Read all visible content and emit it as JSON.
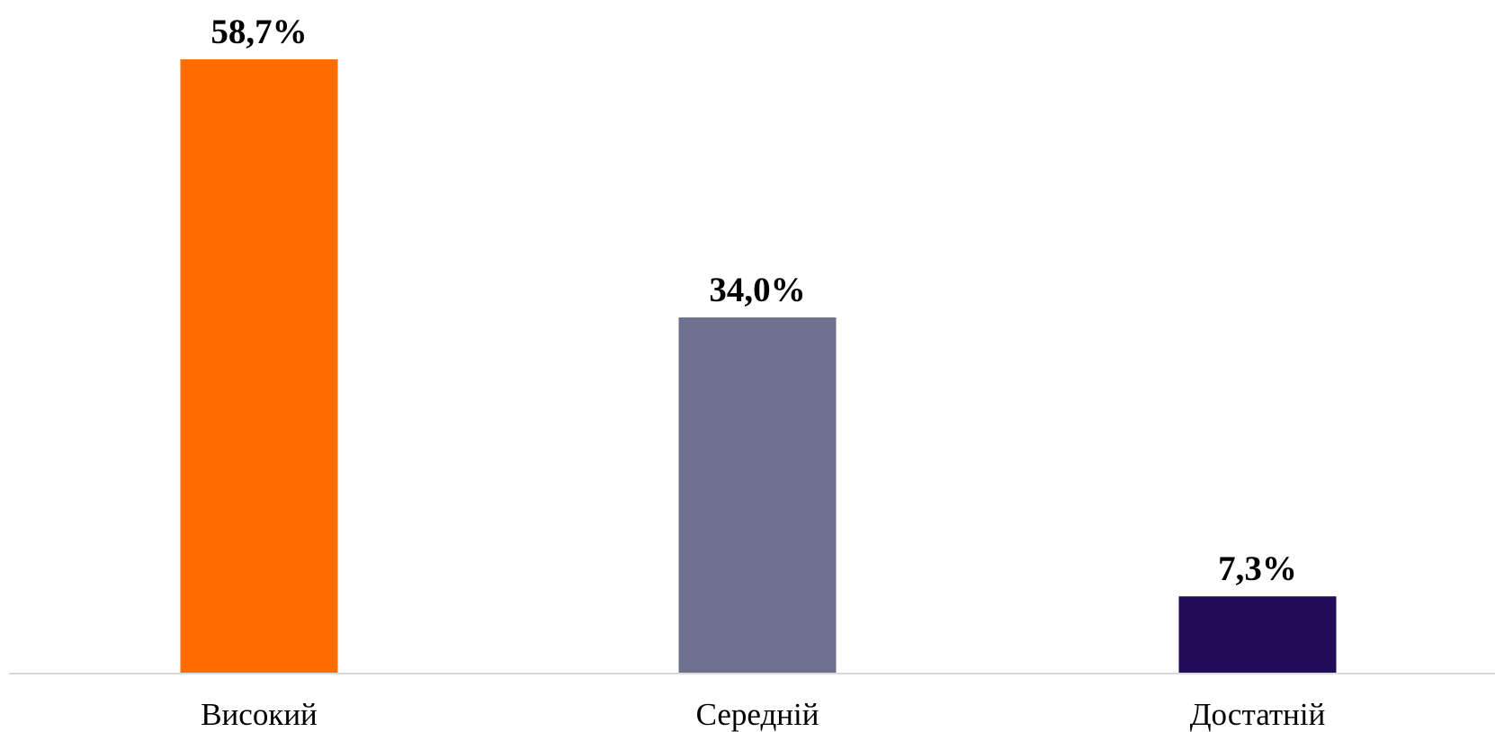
{
  "chart_data": {
    "type": "bar",
    "categories": [
      "Високий",
      "Середній",
      "Достатній"
    ],
    "values": [
      58.7,
      34.0,
      7.3
    ],
    "value_labels": [
      "58,7%",
      "34,0%",
      "7,3%"
    ],
    "ylim": [
      0,
      58.7
    ],
    "grid": false,
    "legend": "none",
    "colors": [
      "#ff6d00",
      "#6d718e",
      "#230d5b"
    ],
    "axis_color": "#d9d9d9"
  }
}
